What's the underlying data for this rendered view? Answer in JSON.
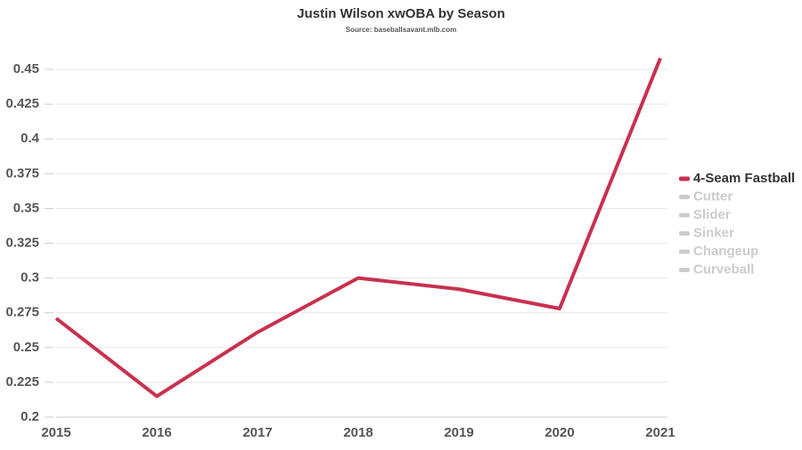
{
  "chart_data": {
    "type": "line",
    "title": "Justin Wilson xwOBA by Season",
    "subtitle": "Source: baseballsavant.mlb.com",
    "categories": [
      "2015",
      "2016",
      "2017",
      "2018",
      "2019",
      "2020",
      "2021"
    ],
    "series": [
      {
        "name": "4-Seam Fastball",
        "color": "#c8314f",
        "values": [
          0.271,
          0.215,
          0.261,
          0.3,
          0.292,
          0.278,
          0.458
        ]
      },
      {
        "name": "Cutter",
        "color": "#cccccc",
        "values": [
          null,
          null,
          null,
          null,
          null,
          null,
          null
        ]
      },
      {
        "name": "Slider",
        "color": "#cccccc",
        "values": [
          null,
          null,
          null,
          null,
          null,
          null,
          null
        ]
      },
      {
        "name": "Sinker",
        "color": "#cccccc",
        "values": [
          null,
          null,
          null,
          null,
          null,
          null,
          null
        ]
      },
      {
        "name": "Changeup",
        "color": "#cccccc",
        "values": [
          null,
          null,
          null,
          null,
          null,
          null,
          null
        ]
      },
      {
        "name": "Curveball",
        "color": "#cccccc",
        "values": [
          null,
          null,
          null,
          null,
          null,
          null,
          null
        ]
      }
    ],
    "ylim": [
      0.2,
      0.46
    ],
    "yticks": [
      0.2,
      0.225,
      0.25,
      0.275,
      0.3,
      0.325,
      0.35,
      0.375,
      0.4,
      0.425,
      0.45
    ],
    "grid": true,
    "legend": "right"
  }
}
